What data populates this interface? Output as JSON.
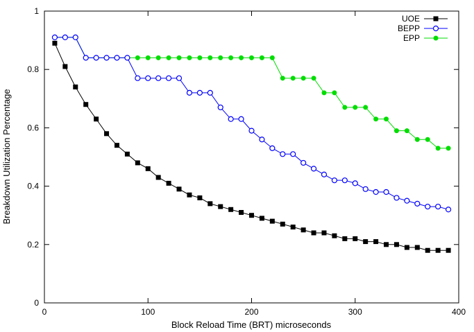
{
  "chart_data": {
    "type": "line",
    "xlabel": "Block Reload Time (BRT) microseconds",
    "ylabel": "Breakdown Utilization Percentage",
    "xlim": [
      0,
      400
    ],
    "ylim": [
      0,
      1
    ],
    "xticks": [
      0,
      100,
      200,
      300,
      400
    ],
    "yticks": [
      0,
      0.2,
      0.4,
      0.6,
      0.8,
      1
    ],
    "xtick_labels": [
      "0",
      "100",
      "200",
      "300",
      "400"
    ],
    "ytick_labels": [
      "0",
      "0.2",
      "0.4",
      "0.6",
      "0.8",
      "1"
    ],
    "grid": false,
    "legend_position": "top-right",
    "x": [
      10,
      20,
      30,
      40,
      50,
      60,
      70,
      80,
      90,
      100,
      110,
      120,
      130,
      140,
      150,
      160,
      170,
      180,
      190,
      200,
      210,
      220,
      230,
      240,
      250,
      260,
      270,
      280,
      290,
      300,
      310,
      320,
      330,
      340,
      350,
      360,
      370,
      380,
      390
    ],
    "series": [
      {
        "name": "UOE",
        "color": "#000000",
        "marker": "filled-square",
        "values": [
          0.89,
          0.81,
          0.74,
          0.68,
          0.63,
          0.58,
          0.54,
          0.51,
          0.48,
          0.46,
          0.43,
          0.41,
          0.39,
          0.37,
          0.36,
          0.34,
          0.33,
          0.32,
          0.31,
          0.3,
          0.29,
          0.28,
          0.27,
          0.26,
          0.25,
          0.24,
          0.24,
          0.23,
          0.22,
          0.22,
          0.21,
          0.21,
          0.2,
          0.2,
          0.19,
          0.19,
          0.18,
          0.18,
          0.18
        ]
      },
      {
        "name": "BEPP",
        "color": "#0000ff",
        "marker": "open-circle",
        "values": [
          0.91,
          0.91,
          0.91,
          0.84,
          0.84,
          0.84,
          0.84,
          0.84,
          0.77,
          0.77,
          0.77,
          0.77,
          0.77,
          0.72,
          0.72,
          0.72,
          0.67,
          0.63,
          0.63,
          0.59,
          0.56,
          0.53,
          0.51,
          0.51,
          0.48,
          0.46,
          0.44,
          0.42,
          0.42,
          0.41,
          0.39,
          0.38,
          0.38,
          0.36,
          0.35,
          0.34,
          0.33,
          0.33,
          0.32
        ]
      },
      {
        "name": "EPP",
        "color": "#00dd00",
        "marker": "filled-circle",
        "values": [
          0.91,
          0.91,
          0.91,
          0.84,
          0.84,
          0.84,
          0.84,
          0.84,
          0.84,
          0.84,
          0.84,
          0.84,
          0.84,
          0.84,
          0.84,
          0.84,
          0.84,
          0.84,
          0.84,
          0.84,
          0.84,
          0.84,
          0.77,
          0.77,
          0.77,
          0.77,
          0.72,
          0.72,
          0.67,
          0.67,
          0.67,
          0.63,
          0.63,
          0.59,
          0.59,
          0.56,
          0.56,
          0.53,
          0.53
        ]
      }
    ]
  }
}
